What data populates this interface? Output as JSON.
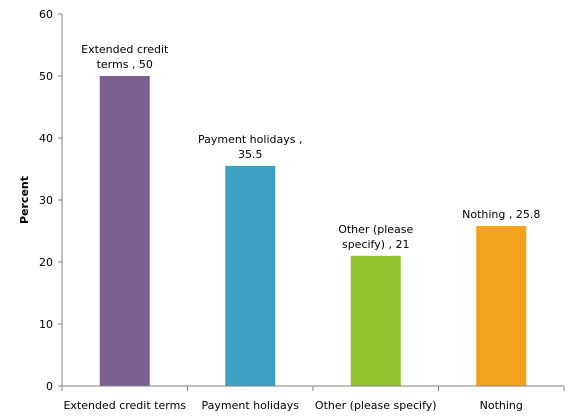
{
  "chart_data": {
    "type": "bar",
    "title": "",
    "xlabel": "",
    "ylabel": "Percent",
    "ylim": [
      0,
      60
    ],
    "yticks": [
      0,
      10,
      20,
      30,
      40,
      50,
      60
    ],
    "grid": false,
    "categories": [
      "Extended credit terms",
      "Payment holidays",
      "Other (please specify)",
      "Nothing"
    ],
    "values": [
      50,
      35.5,
      21,
      25.8
    ],
    "colors": [
      "#7B5E92",
      "#3DA1C4",
      "#92C52D",
      "#F4A11B"
    ],
    "data_labels": [
      [
        "Extended credit",
        "terms , 50"
      ],
      [
        "Payment holidays ,",
        "35.5"
      ],
      [
        "Other (please",
        "specify) , 21"
      ],
      [
        "Nothing , 25.8"
      ]
    ]
  }
}
